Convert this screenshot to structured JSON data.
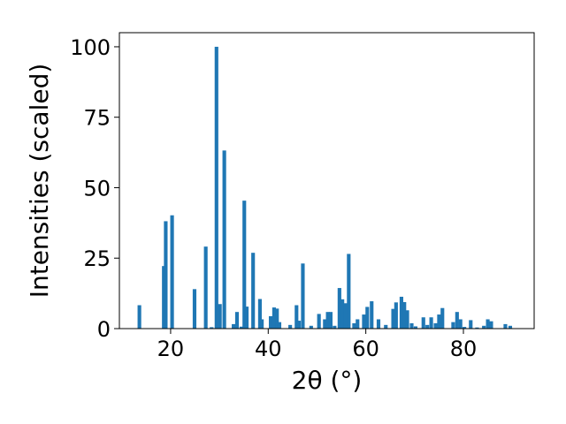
{
  "chart_data": {
    "type": "bar",
    "title": "",
    "xlabel": "2θ (°)",
    "ylabel": "Intensities (scaled)",
    "xlim": [
      9.5,
      94.5
    ],
    "ylim": [
      0,
      105
    ],
    "xticks": [
      20,
      40,
      60,
      80
    ],
    "yticks": [
      0,
      25,
      50,
      75,
      100
    ],
    "grid": false,
    "bar_color": "#1f77b4",
    "bar_width": 0.75,
    "x": [
      13.6,
      18.6,
      19.0,
      20.3,
      24.9,
      27.2,
      28.4,
      29.4,
      30.1,
      31.0,
      32.9,
      33.6,
      34.5,
      35.1,
      35.6,
      36.9,
      38.3,
      38.7,
      40.5,
      41.2,
      41.8,
      42.3,
      44.5,
      45.8,
      46.3,
      47.1,
      48.8,
      50.4,
      51.6,
      52.2,
      52.8,
      53.6,
      54.6,
      55.2,
      55.9,
      56.5,
      57.6,
      58.3,
      59.6,
      60.3,
      61.2,
      62.6,
      64.1,
      65.6,
      66.2,
      67.3,
      67.9,
      68.5,
      69.4,
      70.2,
      71.8,
      72.6,
      73.4,
      74.3,
      75.0,
      75.7,
      77.9,
      78.7,
      79.4,
      80.2,
      81.5,
      82.8,
      84.2,
      85.0,
      85.7,
      88.6,
      89.6
    ],
    "values": [
      8.3,
      22.2,
      38.1,
      40.2,
      14.0,
      29.1,
      0.5,
      100.0,
      8.7,
      63.2,
      1.6,
      5.9,
      0.7,
      45.4,
      7.8,
      26.9,
      10.5,
      3.3,
      4.4,
      7.5,
      7.1,
      2.3,
      1.3,
      8.3,
      2.8,
      23.1,
      1.0,
      5.2,
      3.3,
      5.9,
      5.9,
      1.0,
      14.4,
      10.4,
      9.0,
      26.5,
      1.9,
      3.3,
      5.0,
      7.7,
      9.7,
      3.3,
      1.3,
      7.0,
      9.3,
      11.3,
      9.4,
      6.5,
      1.9,
      0.8,
      4.0,
      1.3,
      4.0,
      1.9,
      5.0,
      7.3,
      2.3,
      5.9,
      3.3,
      0.6,
      3.0,
      0.4,
      1.0,
      3.3,
      2.6,
      1.6,
      1.0
    ]
  }
}
